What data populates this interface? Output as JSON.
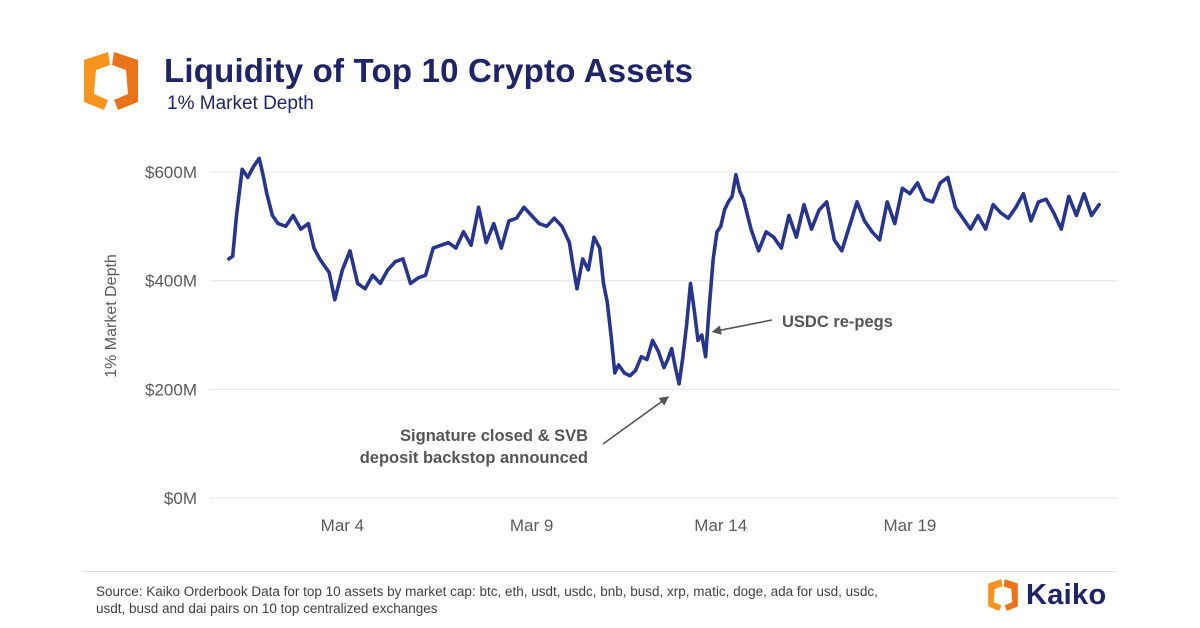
{
  "header": {
    "title": "Liquidity of Top 10 Crypto Assets",
    "subtitle": "1% Market Depth"
  },
  "footer": {
    "source": "Source: Kaiko Orderbook Data for top 10 assets by market cap: btc, eth, usdt, usdc, bnb, busd, xrp, matic, doge, ada for usd, usdc, usdt, busd and dai pairs on 10 top centralized exchanges",
    "brand": "Kaiko"
  },
  "colors": {
    "navy": "#1e2466",
    "line": "#27358c",
    "orange": "#f7941d",
    "orange_dark": "#e8731a",
    "grid": "#e6e6e6",
    "axis_text": "#5a5a5a",
    "annotation": "#555555"
  },
  "chart_data": {
    "type": "line",
    "title": "Liquidity of Top 10 Crypto Assets",
    "subtitle": "1% Market Depth",
    "xlabel": "",
    "ylabel": "1% Market Depth",
    "ylim": [
      0,
      600
    ],
    "xlim": [
      0.5,
      24.5
    ],
    "y_ticks": [
      0,
      200,
      400,
      600
    ],
    "y_tick_labels": [
      "$0M",
      "$200M",
      "$400M",
      "$600M"
    ],
    "x_ticks": [
      4,
      9,
      14,
      19
    ],
    "x_tick_labels": [
      "Mar 4",
      "Mar 9",
      "Mar 14",
      "Mar 19"
    ],
    "grid": "horizontal",
    "series": [
      {
        "name": "1% Market Depth ($M)",
        "x": [
          1.0,
          1.1,
          1.2,
          1.35,
          1.5,
          1.65,
          1.8,
          1.9,
          2.0,
          2.15,
          2.3,
          2.5,
          2.7,
          2.9,
          3.1,
          3.25,
          3.4,
          3.5,
          3.65,
          3.8,
          4.0,
          4.2,
          4.4,
          4.6,
          4.8,
          5.0,
          5.2,
          5.4,
          5.6,
          5.8,
          6.0,
          6.2,
          6.4,
          6.6,
          6.8,
          7.0,
          7.2,
          7.4,
          7.6,
          7.8,
          8.0,
          8.2,
          8.4,
          8.6,
          8.8,
          9.0,
          9.2,
          9.4,
          9.6,
          9.8,
          10.0,
          10.1,
          10.2,
          10.35,
          10.5,
          10.65,
          10.8,
          10.9,
          11.0,
          11.1,
          11.2,
          11.3,
          11.45,
          11.6,
          11.75,
          11.9,
          12.05,
          12.2,
          12.35,
          12.5,
          12.6,
          12.7,
          12.8,
          12.9,
          13.0,
          13.1,
          13.2,
          13.3,
          13.4,
          13.5,
          13.6,
          13.7,
          13.8,
          13.9,
          14.0,
          14.1,
          14.2,
          14.3,
          14.4,
          14.5,
          14.6,
          14.8,
          15.0,
          15.2,
          15.4,
          15.6,
          15.8,
          16.0,
          16.2,
          16.4,
          16.6,
          16.8,
          17.0,
          17.2,
          17.4,
          17.6,
          17.8,
          18.0,
          18.2,
          18.4,
          18.6,
          18.8,
          19.0,
          19.2,
          19.4,
          19.6,
          19.8,
          20.0,
          20.2,
          20.4,
          20.6,
          20.8,
          21.0,
          21.2,
          21.4,
          21.6,
          21.8,
          22.0,
          22.2,
          22.4,
          22.6,
          22.8,
          23.0,
          23.2,
          23.4,
          23.6,
          23.8,
          24.0
        ],
        "values": [
          440,
          445,
          520,
          605,
          590,
          610,
          625,
          595,
          560,
          520,
          505,
          500,
          520,
          495,
          505,
          460,
          440,
          430,
          415,
          365,
          420,
          455,
          395,
          385,
          410,
          395,
          420,
          435,
          440,
          395,
          405,
          410,
          460,
          465,
          470,
          460,
          490,
          465,
          535,
          470,
          505,
          460,
          510,
          515,
          535,
          520,
          505,
          500,
          515,
          500,
          470,
          425,
          385,
          440,
          420,
          480,
          460,
          395,
          360,
          300,
          230,
          245,
          230,
          225,
          235,
          260,
          255,
          290,
          270,
          240,
          255,
          275,
          240,
          210,
          260,
          320,
          395,
          345,
          290,
          300,
          260,
          355,
          440,
          490,
          500,
          530,
          545,
          555,
          595,
          565,
          550,
          495,
          455,
          490,
          480,
          460,
          520,
          480,
          540,
          495,
          530,
          545,
          475,
          455,
          500,
          545,
          510,
          490,
          475,
          545,
          505,
          570,
          560,
          580,
          550,
          545,
          580,
          590,
          535,
          515,
          495,
          520,
          495,
          540,
          525,
          515,
          535,
          560,
          510,
          545,
          550,
          525,
          495,
          555,
          520,
          560,
          520,
          540
        ]
      }
    ],
    "annotations": [
      {
        "text": "USDC re-pegs",
        "x": 13.7,
        "y": 310
      },
      {
        "text": "Signature closed & SVB deposit backstop announced",
        "lines": [
          "Signature closed & SVB",
          "deposit backstop announced"
        ],
        "x": 12.7,
        "y": 200
      }
    ]
  }
}
